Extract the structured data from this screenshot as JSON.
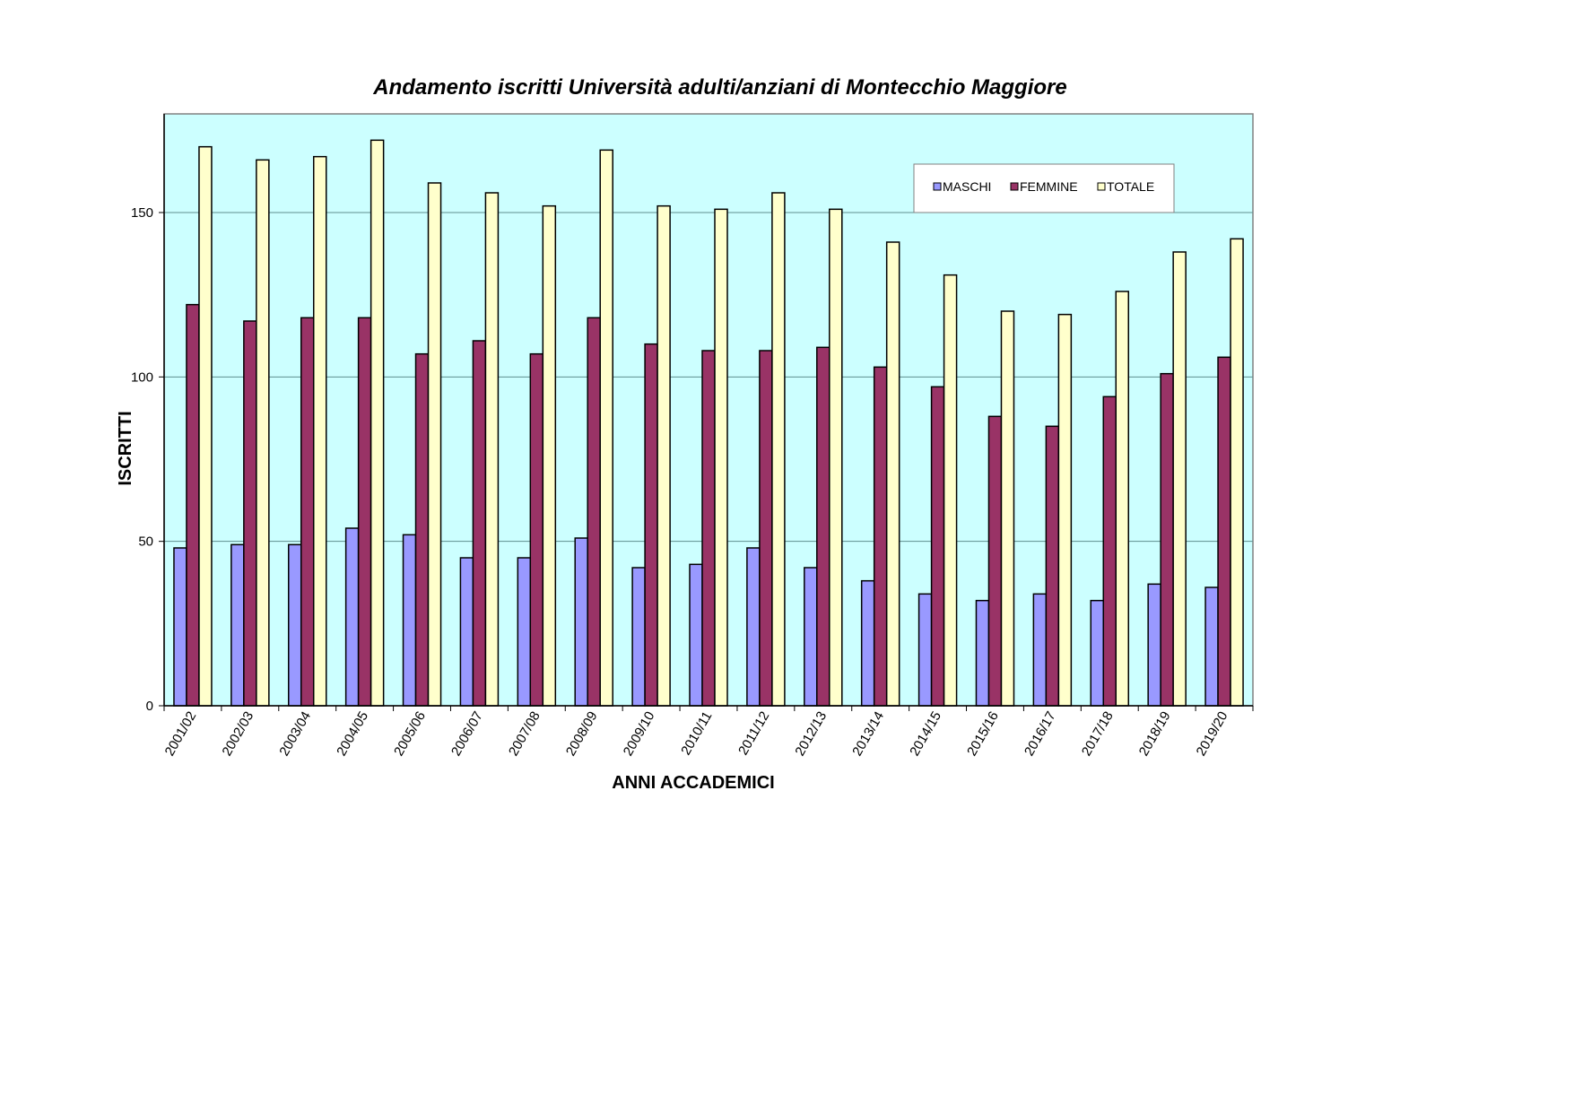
{
  "chart_data": {
    "type": "bar",
    "title": "Andamento iscritti Università adulti/anziani di Montecchio Maggiore",
    "xlabel": "ANNI ACCADEMICI",
    "ylabel": "ISCRITTI",
    "ylim": [
      0,
      180
    ],
    "yticks": [
      0,
      50,
      100,
      150
    ],
    "grid": true,
    "legend_position": "top-right",
    "background_color": "#ccffff",
    "categories": [
      "2001/02",
      "2002/03",
      "2003/04",
      "2004/05",
      "2005/06",
      "2006/07",
      "2007/08",
      "2008/09",
      "2009/10",
      "2010/11",
      "2011/12",
      "2012/13",
      "2013/14",
      "2014/15",
      "2015/16",
      "2016/17",
      "2017/18",
      "2018/19",
      "2019/20"
    ],
    "series": [
      {
        "name": "MASCHI",
        "color": "#9999ff",
        "values": [
          48,
          49,
          49,
          54,
          52,
          45,
          45,
          51,
          42,
          43,
          48,
          42,
          38,
          34,
          32,
          34,
          32,
          37,
          36
        ]
      },
      {
        "name": "FEMMINE",
        "color": "#993366",
        "values": [
          122,
          117,
          118,
          118,
          107,
          111,
          107,
          118,
          110,
          108,
          108,
          109,
          103,
          97,
          88,
          85,
          94,
          101,
          106
        ]
      },
      {
        "name": "TOTALE",
        "color": "#ffffcc",
        "values": [
          170,
          166,
          167,
          172,
          159,
          156,
          152,
          169,
          152,
          151,
          156,
          151,
          141,
          131,
          120,
          119,
          126,
          138,
          142
        ]
      }
    ]
  }
}
